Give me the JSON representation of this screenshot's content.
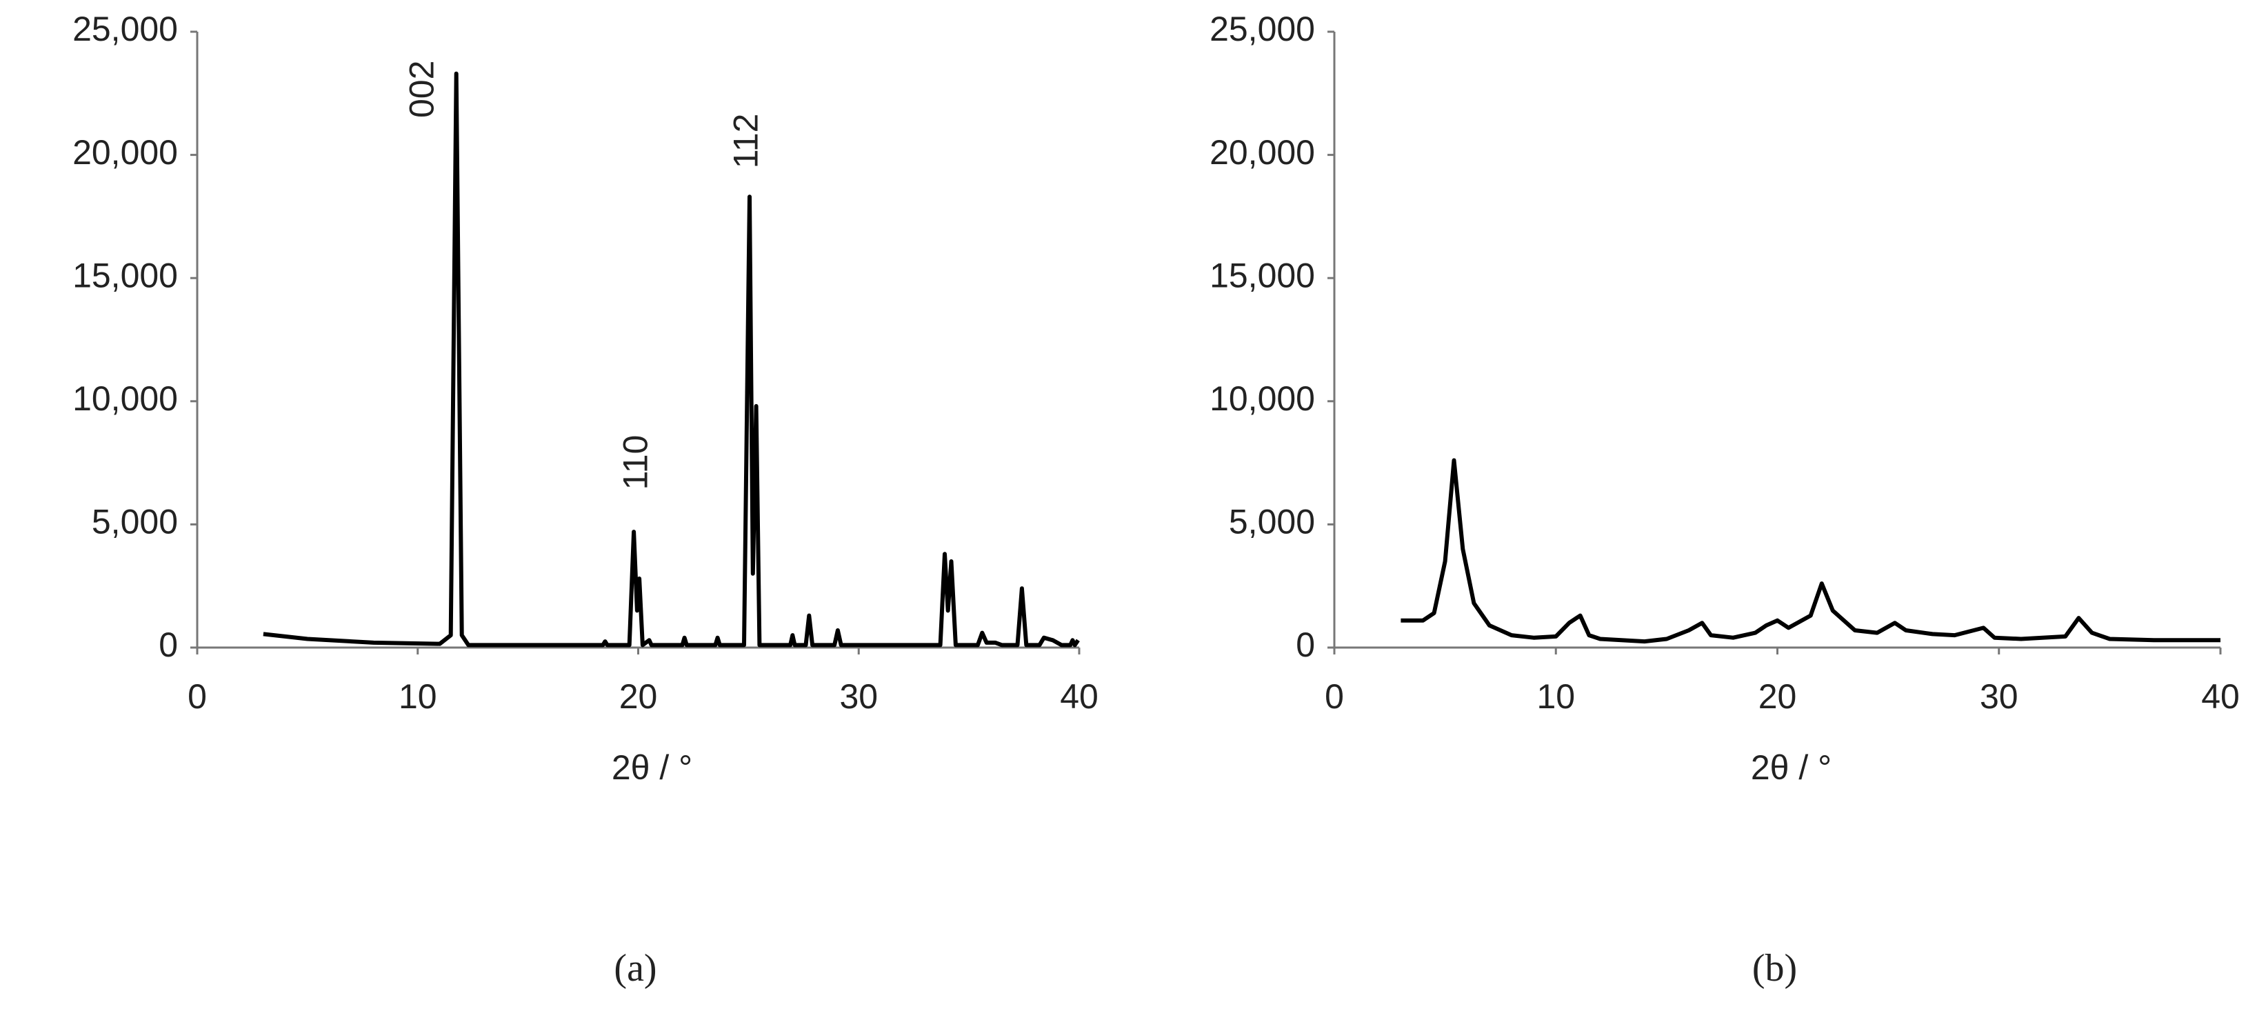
{
  "chart_data": [
    {
      "type": "line",
      "caption": "(a)",
      "xlabel": "2θ / °",
      "color": "#000000",
      "xlim": [
        0,
        40
      ],
      "xticks": [
        0,
        10,
        20,
        30,
        40
      ],
      "ylim": [
        0,
        25000
      ],
      "yticks": [
        0,
        {
          "value": 5000,
          "label": "5,000"
        },
        {
          "value": 10000,
          "label": "10,000"
        },
        {
          "value": 15000,
          "label": "15,000"
        },
        {
          "value": 20000,
          "label": "20,000"
        },
        {
          "value": 25000,
          "label": "25,000"
        }
      ],
      "x": [
        3,
        5,
        8,
        11,
        11.5,
        11.75,
        12.0,
        12.3,
        18.4,
        18.5,
        18.6,
        19.6,
        19.8,
        19.95,
        20.05,
        20.2,
        20.5,
        20.6,
        22.0,
        22.1,
        22.2,
        23.5,
        23.6,
        23.7,
        24.8,
        25.05,
        25.2,
        25.35,
        25.5,
        26.9,
        27.0,
        27.1,
        27.6,
        27.75,
        27.9,
        28.9,
        29.05,
        29.2,
        33.7,
        33.9,
        34.05,
        34.2,
        34.4,
        35.4,
        35.6,
        35.8,
        36.2,
        36.5,
        37.2,
        37.4,
        37.6,
        38.2,
        38.4,
        38.8,
        39.2,
        39.6,
        39.7,
        39.8,
        39.95
      ],
      "values": [
        550,
        350,
        200,
        150,
        500,
        23300,
        500,
        100,
        100,
        250,
        100,
        100,
        4700,
        1500,
        2800,
        100,
        300,
        100,
        100,
        400,
        100,
        100,
        400,
        100,
        100,
        18300,
        3000,
        9800,
        100,
        100,
        500,
        100,
        100,
        1300,
        100,
        100,
        700,
        100,
        100,
        3800,
        1500,
        3500,
        100,
        100,
        600,
        200,
        200,
        100,
        100,
        2400,
        100,
        100,
        400,
        300,
        100,
        100,
        300,
        100,
        300
      ],
      "annotations": [
        {
          "text": "002",
          "x": 10.3,
          "y": 21500
        },
        {
          "text": "110",
          "x": 20.0,
          "y": 6400
        },
        {
          "text": "112",
          "x": 25.0,
          "y": 19450
        }
      ]
    },
    {
      "type": "line",
      "caption": "(b)",
      "xlabel": "2θ / °",
      "color": "#000000",
      "xlim": [
        0,
        40
      ],
      "xticks": [
        0,
        10,
        20,
        30,
        40
      ],
      "ylim": [
        0,
        25000
      ],
      "yticks": [
        0,
        {
          "value": 5000,
          "label": "5,000"
        },
        {
          "value": 10000,
          "label": "10,000"
        },
        {
          "value": 15000,
          "label": "15,000"
        },
        {
          "value": 20000,
          "label": "20,000"
        },
        {
          "value": 25000,
          "label": "25,000"
        }
      ],
      "x": [
        3,
        4,
        4.5,
        5.0,
        5.4,
        5.8,
        6.3,
        7,
        8,
        9,
        10,
        10.6,
        11.1,
        11.5,
        12,
        14,
        15,
        16,
        16.6,
        17,
        18,
        19,
        19.5,
        20,
        20.5,
        21.5,
        22.0,
        22.5,
        23.5,
        24.5,
        25.3,
        25.8,
        27,
        28,
        29.3,
        29.8,
        31,
        33,
        33.6,
        34.2,
        35,
        37,
        40
      ],
      "values": [
        1100,
        1100,
        1400,
        3500,
        7600,
        4000,
        1800,
        900,
        500,
        400,
        450,
        1000,
        1300,
        500,
        350,
        250,
        350,
        700,
        1000,
        500,
        400,
        600,
        900,
        1100,
        800,
        1300,
        2600,
        1500,
        700,
        600,
        1000,
        700,
        550,
        500,
        800,
        400,
        350,
        450,
        1200,
        600,
        350,
        300,
        300
      ]
    }
  ]
}
